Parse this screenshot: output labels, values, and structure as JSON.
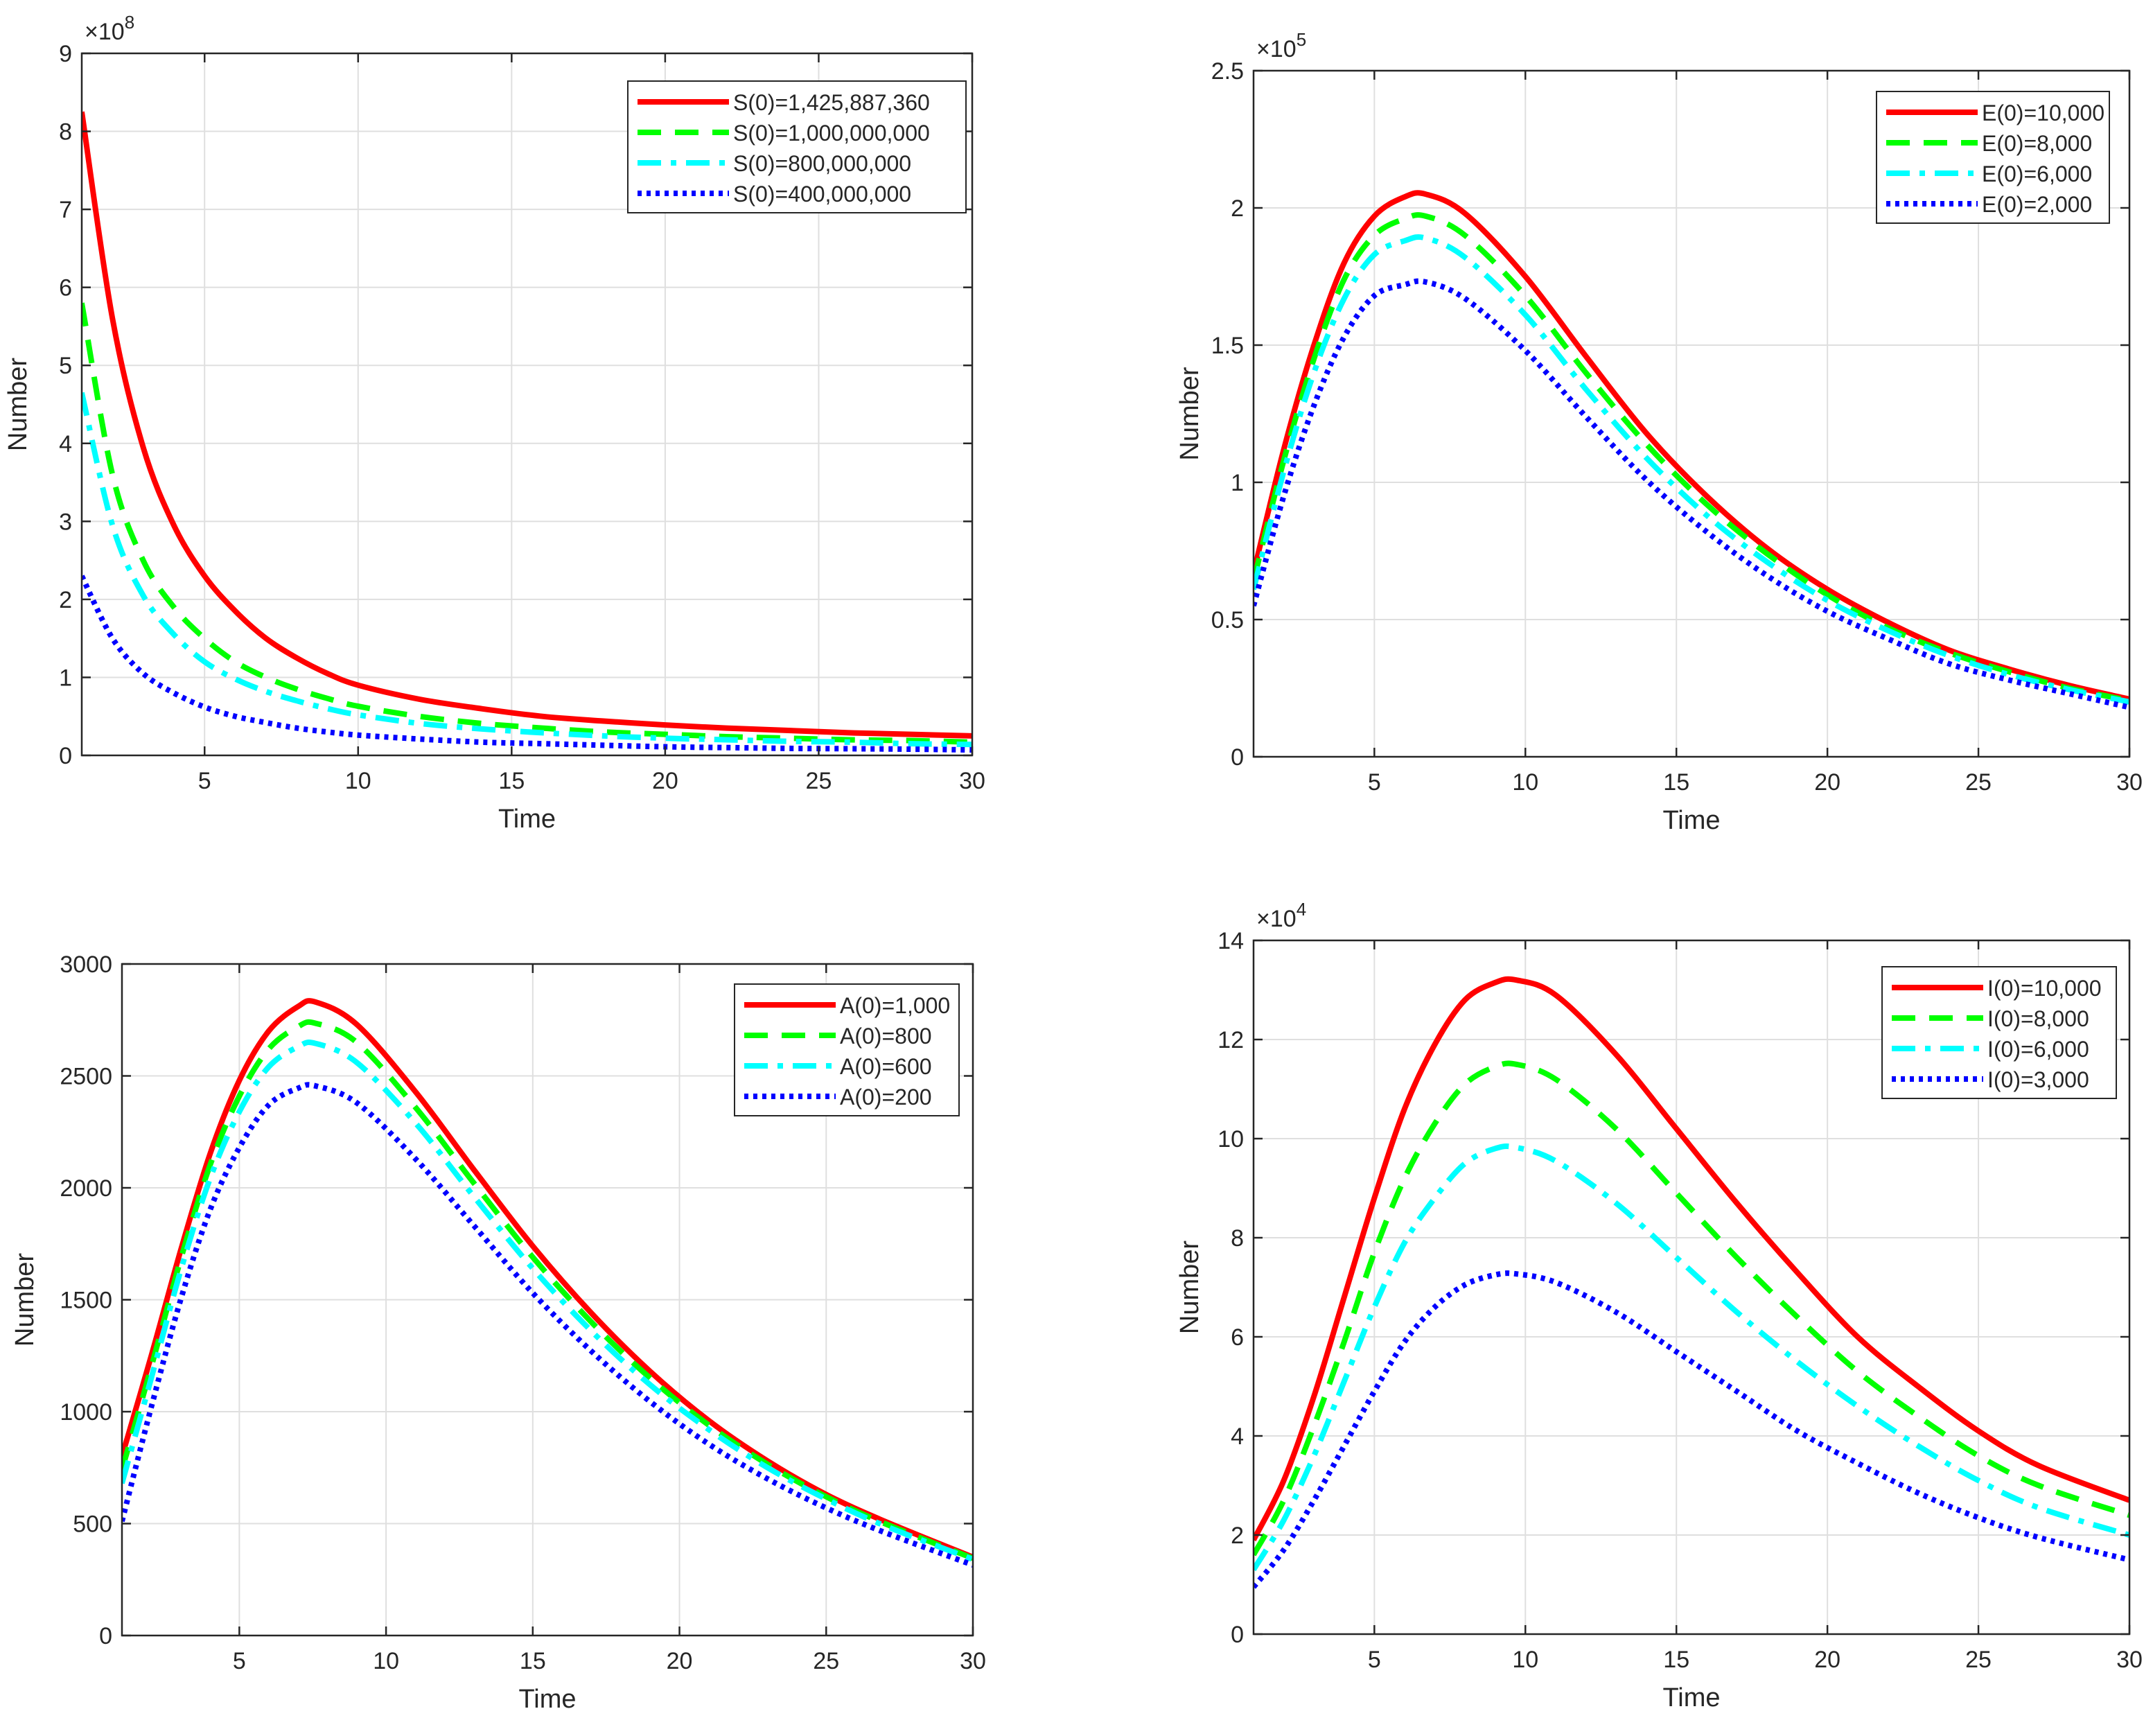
{
  "chart_data": [
    {
      "type": "line",
      "xlabel": "Time",
      "ylabel": "Number",
      "xlim": [
        1,
        30
      ],
      "ylim": [
        0,
        9
      ],
      "xticks": [
        5,
        10,
        15,
        20,
        25,
        30
      ],
      "yticks": [
        0,
        1,
        2,
        3,
        4,
        5,
        6,
        7,
        8,
        9
      ],
      "ytick_labels": [
        "0",
        "1",
        "2",
        "3",
        "4",
        "5",
        "6",
        "7",
        "8",
        "9"
      ],
      "exponent_base": "×10",
      "exponent_power": "8",
      "grid": true,
      "legend_position": "top-right",
      "x": [
        1,
        2,
        3,
        4,
        5,
        6,
        7,
        8,
        9,
        10,
        12,
        14,
        16,
        18,
        20,
        22,
        24,
        26,
        28,
        30
      ],
      "series": [
        {
          "name": "S(0)=1,425,887,360",
          "color": "#ff0000",
          "style": "solid",
          "values": [
            8.25,
            5.6,
            3.95,
            2.95,
            2.3,
            1.85,
            1.5,
            1.25,
            1.05,
            0.9,
            0.72,
            0.6,
            0.5,
            0.44,
            0.39,
            0.35,
            0.32,
            0.29,
            0.27,
            0.25
          ]
        },
        {
          "name": "S(0)=1,000,000,000",
          "color": "#00ff00",
          "style": "dashed",
          "values": [
            5.8,
            3.6,
            2.5,
            1.9,
            1.5,
            1.2,
            1.0,
            0.85,
            0.73,
            0.63,
            0.5,
            0.41,
            0.35,
            0.3,
            0.27,
            0.24,
            0.22,
            0.2,
            0.19,
            0.17
          ]
        },
        {
          "name": "S(0)=800,000,000",
          "color": "#00ffff",
          "style": "dashdot",
          "values": [
            4.65,
            2.95,
            2.05,
            1.55,
            1.2,
            0.98,
            0.82,
            0.7,
            0.6,
            0.52,
            0.41,
            0.34,
            0.29,
            0.25,
            0.22,
            0.2,
            0.18,
            0.17,
            0.15,
            0.14
          ]
        },
        {
          "name": "S(0)=400,000,000",
          "color": "#0000ff",
          "style": "dotted",
          "values": [
            2.3,
            1.5,
            1.05,
            0.8,
            0.62,
            0.5,
            0.42,
            0.35,
            0.3,
            0.26,
            0.21,
            0.17,
            0.15,
            0.13,
            0.11,
            0.1,
            0.09,
            0.085,
            0.08,
            0.07
          ]
        }
      ]
    },
    {
      "type": "line",
      "xlabel": "Time",
      "ylabel": "Number",
      "xlim": [
        1,
        30
      ],
      "ylim": [
        0,
        2.5
      ],
      "xticks": [
        5,
        10,
        15,
        20,
        25,
        30
      ],
      "yticks": [
        0,
        0.5,
        1,
        1.5,
        2,
        2.5
      ],
      "ytick_labels": [
        "0",
        "0.5",
        "1",
        "1.5",
        "2",
        "2.5"
      ],
      "exponent_base": "×10",
      "exponent_power": "5",
      "grid": true,
      "legend_position": "top-right",
      "x": [
        1,
        2,
        3,
        4,
        5,
        6,
        6.7,
        8,
        10,
        12,
        14,
        16,
        18,
        20,
        22,
        24,
        26,
        28,
        30
      ],
      "series": [
        {
          "name": "E(0)=10,000",
          "color": "#ff0000",
          "style": "solid",
          "values": [
            0.67,
            1.12,
            1.5,
            1.8,
            1.97,
            2.04,
            2.05,
            1.98,
            1.75,
            1.46,
            1.18,
            0.95,
            0.76,
            0.61,
            0.49,
            0.39,
            0.32,
            0.26,
            0.21
          ]
        },
        {
          "name": "E(0)=8,000",
          "color": "#00ff00",
          "style": "dashed",
          "values": [
            0.64,
            1.08,
            1.45,
            1.74,
            1.9,
            1.96,
            1.97,
            1.9,
            1.68,
            1.4,
            1.14,
            0.92,
            0.74,
            0.59,
            0.47,
            0.38,
            0.31,
            0.25,
            0.205
          ]
        },
        {
          "name": "E(0)=6,000",
          "color": "#00ffff",
          "style": "dashdot",
          "values": [
            0.61,
            1.04,
            1.4,
            1.67,
            1.83,
            1.88,
            1.89,
            1.82,
            1.61,
            1.34,
            1.09,
            0.88,
            0.71,
            0.57,
            0.46,
            0.37,
            0.3,
            0.245,
            0.2
          ]
        },
        {
          "name": "E(0)=2,000",
          "color": "#0000ff",
          "style": "dotted",
          "values": [
            0.55,
            0.95,
            1.28,
            1.53,
            1.68,
            1.72,
            1.73,
            1.67,
            1.48,
            1.24,
            1.01,
            0.82,
            0.66,
            0.53,
            0.43,
            0.34,
            0.28,
            0.23,
            0.18
          ]
        }
      ]
    },
    {
      "type": "line",
      "xlabel": "Time",
      "ylabel": "Number",
      "xlim": [
        1,
        30
      ],
      "ylim": [
        0,
        3000
      ],
      "xticks": [
        5,
        10,
        15,
        20,
        25,
        30
      ],
      "yticks": [
        0,
        500,
        1000,
        1500,
        2000,
        2500,
        3000
      ],
      "ytick_labels": [
        "0",
        "500",
        "1000",
        "1500",
        "2000",
        "2500",
        "3000"
      ],
      "exponent_base": "",
      "exponent_power": "",
      "grid": true,
      "legend_position": "top-right",
      "x": [
        1,
        2,
        3,
        4,
        5,
        6,
        7,
        7.6,
        9,
        11,
        13,
        15,
        17,
        19,
        21,
        23,
        25,
        27,
        30
      ],
      "series": [
        {
          "name": "A(0)=1,000",
          "color": "#ff0000",
          "style": "solid",
          "values": [
            800,
            1250,
            1720,
            2150,
            2480,
            2700,
            2810,
            2830,
            2730,
            2430,
            2080,
            1740,
            1440,
            1180,
            960,
            780,
            630,
            510,
            350
          ]
        },
        {
          "name": "A(0)=800",
          "color": "#00ff00",
          "style": "dashed",
          "values": [
            740,
            1200,
            1680,
            2100,
            2410,
            2620,
            2720,
            2735,
            2650,
            2360,
            2020,
            1690,
            1400,
            1150,
            940,
            765,
            620,
            500,
            345
          ]
        },
        {
          "name": "A(0)=600",
          "color": "#00ffff",
          "style": "dashdot",
          "values": [
            680,
            1150,
            1630,
            2040,
            2340,
            2540,
            2630,
            2645,
            2560,
            2290,
            1960,
            1640,
            1360,
            1120,
            920,
            750,
            610,
            490,
            340
          ]
        },
        {
          "name": "A(0)=200",
          "color": "#0000ff",
          "style": "dotted",
          "values": [
            510,
            1020,
            1500,
            1900,
            2180,
            2370,
            2445,
            2455,
            2380,
            2130,
            1830,
            1530,
            1270,
            1045,
            855,
            700,
            570,
            460,
            315
          ]
        }
      ]
    },
    {
      "type": "line",
      "xlabel": "Time",
      "ylabel": "Number",
      "xlim": [
        1,
        30
      ],
      "ylim": [
        0,
        14
      ],
      "xticks": [
        5,
        10,
        15,
        20,
        25,
        30
      ],
      "yticks": [
        0,
        2,
        4,
        6,
        8,
        10,
        12,
        14
      ],
      "ytick_labels": [
        "0",
        "2",
        "4",
        "6",
        "8",
        "10",
        "12",
        "14"
      ],
      "exponent_base": "×10",
      "exponent_power": "4",
      "grid": true,
      "legend_position": "top-right",
      "x": [
        1,
        2,
        3,
        4,
        5,
        6,
        7,
        8,
        9,
        9.7,
        11,
        13,
        15,
        17,
        19,
        21,
        23,
        25,
        27,
        30
      ],
      "series": [
        {
          "name": "I(0)=10,000",
          "color": "#ff0000",
          "style": "solid",
          "values": [
            1.9,
            3.1,
            4.8,
            6.8,
            8.8,
            10.6,
            11.9,
            12.8,
            13.15,
            13.2,
            12.9,
            11.7,
            10.2,
            8.7,
            7.3,
            6.0,
            5.0,
            4.1,
            3.4,
            2.7
          ]
        },
        {
          "name": "I(0)=8,000",
          "color": "#00ff00",
          "style": "dashed",
          "values": [
            1.6,
            2.7,
            4.2,
            5.9,
            7.7,
            9.2,
            10.3,
            11.1,
            11.45,
            11.5,
            11.2,
            10.2,
            8.9,
            7.6,
            6.4,
            5.3,
            4.4,
            3.6,
            3.0,
            2.4
          ]
        },
        {
          "name": "I(0)=6,000",
          "color": "#00ffff",
          "style": "dashdot",
          "values": [
            1.3,
            2.3,
            3.6,
            5.1,
            6.6,
            7.9,
            8.8,
            9.5,
            9.8,
            9.82,
            9.55,
            8.7,
            7.6,
            6.5,
            5.5,
            4.6,
            3.8,
            3.1,
            2.55,
            2.0
          ]
        },
        {
          "name": "I(0)=3,000",
          "color": "#0000ff",
          "style": "dotted",
          "values": [
            0.95,
            1.7,
            2.7,
            3.8,
            4.9,
            5.9,
            6.6,
            7.05,
            7.25,
            7.27,
            7.1,
            6.5,
            5.7,
            4.9,
            4.1,
            3.45,
            2.85,
            2.35,
            1.95,
            1.5
          ]
        }
      ]
    }
  ]
}
